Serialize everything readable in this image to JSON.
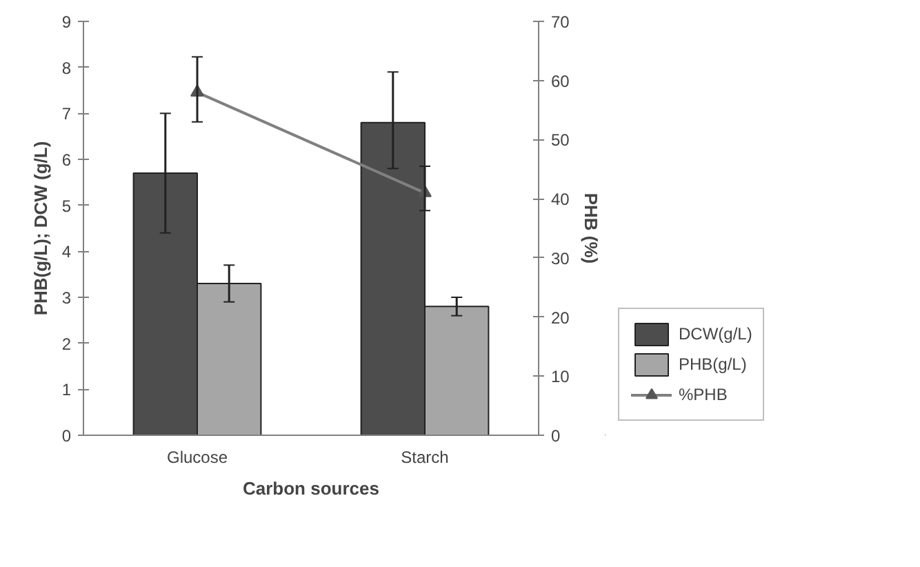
{
  "chart_data": {
    "type": "bar",
    "xlabel": "Carbon sources",
    "ylabel": "PHB(g/L); DCW (g/L)",
    "y2label": "PHB (%)",
    "categories": [
      "Glucose",
      "Starch"
    ],
    "series": [
      {
        "name": "DCW(g/L)",
        "color": "#4d4d4d",
        "values": [
          5.7,
          6.8
        ],
        "errors": [
          [
            4.4,
            7.0
          ],
          [
            5.8,
            7.9
          ]
        ]
      },
      {
        "name": "PHB(g/L)",
        "color": "#a6a6a6",
        "values": [
          3.3,
          2.8
        ],
        "errors": [
          [
            2.9,
            3.7
          ],
          [
            2.6,
            3.0
          ]
        ]
      },
      {
        "name": "%PHB",
        "type": "line",
        "axis": "y2",
        "color": "#808080",
        "marker": "triangle",
        "values": [
          58,
          41
        ],
        "errors": [
          [
            53,
            64
          ],
          [
            38,
            45.5
          ]
        ]
      }
    ],
    "ylim": [
      0,
      9
    ],
    "yticks": [
      0,
      1,
      2,
      3,
      4,
      5,
      6,
      7,
      8,
      9
    ],
    "y2lim": [
      0,
      70
    ],
    "y2ticks": [
      0,
      10,
      20,
      30,
      40,
      50,
      60,
      70
    ],
    "grid": false,
    "legend": "bottom right"
  }
}
